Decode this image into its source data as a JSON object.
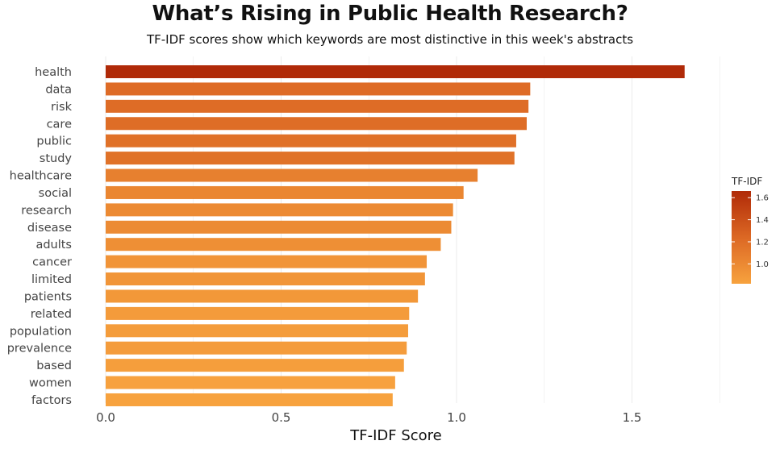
{
  "chart_data": {
    "type": "bar",
    "orientation": "horizontal",
    "title": "What’s Rising in Public Health Research?",
    "subtitle": "TF-IDF scores show which keywords are most distinctive in this week's abstracts",
    "xlabel": "TF-IDF Score",
    "ylabel": "",
    "xlim": [
      0,
      1.85
    ],
    "xticks": [
      "0.0",
      "0.5",
      "1.0",
      "1.5"
    ],
    "grid": "vertical",
    "categories": [
      "health",
      "data",
      "risk",
      "care",
      "public",
      "study",
      "healthcare",
      "social",
      "research",
      "disease",
      "adults",
      "cancer",
      "limited",
      "patients",
      "related",
      "population",
      "prevalence",
      "based",
      "women",
      "factors"
    ],
    "values": [
      1.65,
      1.21,
      1.205,
      1.2,
      1.17,
      1.165,
      1.06,
      1.02,
      0.99,
      0.985,
      0.955,
      0.915,
      0.91,
      0.89,
      0.865,
      0.862,
      0.858,
      0.85,
      0.825,
      0.818
    ],
    "legend": {
      "title": "TF-IDF",
      "position": "right",
      "ticks": [
        "1.0",
        "1.2",
        "1.4",
        "1.6"
      ],
      "range": [
        0.818,
        1.65
      ],
      "color_low": "#f7a23e",
      "color_high": "#b02a08"
    }
  }
}
